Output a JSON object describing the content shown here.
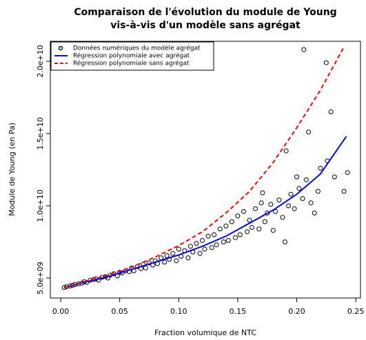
{
  "chart_data": {
    "type": "scatter",
    "title": [
      "Comparaison de l'évolution du module de Young",
      "vis-à-vis d'un modèle sans agrégat"
    ],
    "xlabel": "Fraction volumique de NTC",
    "ylabel": "Module de Young (en Pa)",
    "xlim": [
      -0.0088,
      0.254
    ],
    "ylim": [
      3620000000,
      21380000000
    ],
    "xticks": [
      {
        "value": 0,
        "label": "0.00"
      },
      0.05,
      {
        "value": 0.1,
        "label": "0.10"
      },
      0.15,
      {
        "value": 0.2,
        "label": "0.20"
      },
      0.25
    ],
    "yticks": [
      {
        "value": 5000000000,
        "label": "5.0e+09"
      },
      {
        "value": 10000000000,
        "label": "1.0e+10"
      },
      {
        "value": 15000000000,
        "label": "1.5e+10"
      },
      {
        "value": 20000000000,
        "label": "2.0e+10"
      }
    ],
    "legend": "top-left",
    "series": [
      {
        "name": "Données numériques du modèle agrégat",
        "color": "#000000",
        "style": "points",
        "x": [
          0.003,
          0.005,
          0.008,
          0.01,
          0.012,
          0.015,
          0.018,
          0.02,
          0.022,
          0.025,
          0.028,
          0.03,
          0.032,
          0.035,
          0.038,
          0.04,
          0.042,
          0.045,
          0.048,
          0.05,
          0.052,
          0.055,
          0.058,
          0.06,
          0.062,
          0.065,
          0.068,
          0.07,
          0.072,
          0.075,
          0.078,
          0.08,
          0.082,
          0.085,
          0.088,
          0.09,
          0.092,
          0.095,
          0.098,
          0.1,
          0.102,
          0.105,
          0.108,
          0.11,
          0.112,
          0.115,
          0.118,
          0.12,
          0.122,
          0.125,
          0.128,
          0.13,
          0.132,
          0.135,
          0.138,
          0.14,
          0.142,
          0.145,
          0.148,
          0.15,
          0.152,
          0.155,
          0.158,
          0.16,
          0.162,
          0.165,
          0.168,
          0.17,
          0.171,
          0.173,
          0.175,
          0.178,
          0.18,
          0.182,
          0.185,
          0.188,
          0.19,
          0.191,
          0.193,
          0.195,
          0.198,
          0.2,
          0.202,
          0.205,
          0.206,
          0.208,
          0.21,
          0.212,
          0.215,
          0.218,
          0.22,
          0.225,
          0.226,
          0.229,
          0.232,
          0.24,
          0.243
        ],
        "values": [
          4350000000.0,
          4400000000.0,
          4450000000.0,
          4500000000.0,
          4550000000.0,
          4600000000.0,
          4650000000.0,
          4750000000.0,
          4700000000.0,
          4850000000.0,
          4900000000.0,
          4950000000.0,
          4850000000.0,
          5050000000.0,
          5100000000.0,
          5000000000.0,
          5200000000.0,
          5300000000.0,
          5150000000.0,
          5400000000.0,
          5350000000.0,
          5500000000.0,
          5450000000.0,
          5700000000.0,
          5500000000.0,
          5800000000.0,
          5650000000.0,
          5950000000.0,
          5700000000.0,
          6050000000.0,
          5900000000.0,
          6200000000.0,
          6000000000.0,
          6400000000.0,
          6100000000.0,
          6550000000.0,
          6300000000.0,
          6700000000.0,
          6200000000.0,
          7000000000.0,
          6500000000.0,
          6900000000.0,
          6400000000.0,
          7200000000.0,
          6800000000.0,
          7400000000.0,
          6700000000.0,
          7600000000.0,
          7000000000.0,
          7900000000.0,
          7100000000.0,
          8000000000.0,
          7300000000.0,
          8400000000.0,
          7500000000.0,
          8600000000.0,
          7600000000.0,
          8900000000.0,
          7800000000.0,
          9300000000.0,
          8000000000.0,
          9600000000.0,
          8200000000.0,
          9000000000.0,
          8500000000.0,
          9800000000.0,
          8400000000.0,
          10200000000.0,
          10900000000.0,
          8900000000.0,
          9500000000.0,
          10100000000.0,
          8300000000.0,
          9600000000.0,
          10400000000.0,
          9200000000.0,
          7500000000.0,
          13800000000.0,
          10000000000.0,
          10800000000.0,
          9800000000.0,
          12000000000.0,
          11200000000.0,
          10500000000.0,
          20800000000.0,
          11800000000.0,
          15100000000.0,
          10200000000.0,
          9500000000.0,
          11000000000.0,
          12600000000.0,
          19900000000.0,
          13100000000.0,
          16500000000.0,
          12000000000.0,
          11000000000.0,
          12300000000.0
        ]
      },
      {
        "name": "Régression polynomiale avec agrégat",
        "color": "#0000ff",
        "style": "line",
        "x": [
          0.003,
          0.02,
          0.04,
          0.06,
          0.08,
          0.1,
          0.12,
          0.14,
          0.16,
          0.18,
          0.2,
          0.22,
          0.242
        ],
        "values": [
          4330000000.0,
          4700000000.0,
          5100000000.0,
          5600000000.0,
          6100000000.0,
          6600000000.0,
          7200000000.0,
          7900000000.0,
          8800000000.0,
          9700000000.0,
          10800000000.0,
          12200000000.0,
          14800000000.0
        ]
      },
      {
        "name": "Régression polynomiale sans agrégat",
        "color": "#ff0000",
        "style": "dashed",
        "x": [
          0.003,
          0.02,
          0.04,
          0.06,
          0.08,
          0.1,
          0.12,
          0.14,
          0.16,
          0.18,
          0.2,
          0.22,
          0.24
        ],
        "values": [
          4330000000.0,
          4750000000.0,
          5200000000.0,
          5750000000.0,
          6450000000.0,
          7250000000.0,
          8200000000.0,
          9500000000.0,
          11000000000.0,
          13000000000.0,
          15400000000.0,
          18000000000.0,
          21000000000.0
        ]
      }
    ]
  }
}
